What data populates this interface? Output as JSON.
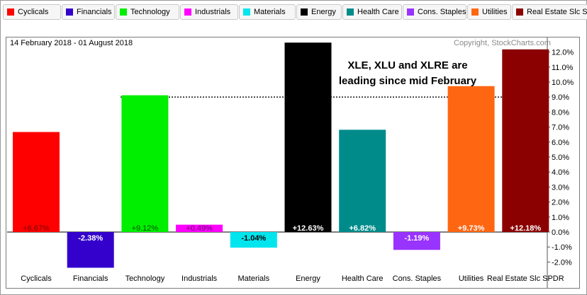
{
  "legend": [
    {
      "label": "Cyclicals",
      "color": "#ff0000"
    },
    {
      "label": "Financials",
      "color": "#3300cc"
    },
    {
      "label": "Technology",
      "color": "#00ee00"
    },
    {
      "label": "Industrials",
      "color": "#ff00ff"
    },
    {
      "label": "Materials",
      "color": "#00e5ee"
    },
    {
      "label": "Energy",
      "color": "#000000"
    },
    {
      "label": "Health Care",
      "color": "#008b8b"
    },
    {
      "label": "Cons. Staples",
      "color": "#9933ff"
    },
    {
      "label": "Utilities",
      "color": "#ff6611"
    },
    {
      "label": "Real Estate Slc SPDR",
      "color": "#8b0000"
    }
  ],
  "header": {
    "date_range": "14 February 2018 - 01 August 2018",
    "copyright": "Copyright, StockCharts.com"
  },
  "annotation": {
    "line1": "XLE, XLU and XLRE are",
    "line2": "leading since mid February"
  },
  "chart_data": {
    "type": "bar",
    "title": "",
    "xlabel": "",
    "ylabel": "",
    "categories": [
      "Cyclicals",
      "Financials",
      "Technology",
      "Industrials",
      "Materials",
      "Energy",
      "Health Care",
      "Cons. Staples",
      "Utilities",
      "Real Estate Slc SPDR"
    ],
    "values": [
      6.67,
      -2.38,
      9.12,
      0.49,
      -1.04,
      12.63,
      6.82,
      -1.19,
      9.73,
      12.18
    ],
    "value_labels": [
      "+6.67%",
      "-2.38%",
      "+9.12%",
      "+0.49%",
      "-1.04%",
      "+12.63%",
      "+6.82%",
      "-1.19%",
      "+9.73%",
      "+12.18%"
    ],
    "colors": [
      "#ff0000",
      "#3300cc",
      "#00ee00",
      "#ff00ff",
      "#00e5ee",
      "#000000",
      "#008b8b",
      "#9933ff",
      "#ff6611",
      "#8b0000"
    ],
    "label_colors": [
      "#7a0000",
      "#ffffff",
      "#005500",
      "#660066",
      "#000000",
      "#ffffff",
      "#ffffff",
      "#ffffff",
      "#ffffff",
      "#ffffff"
    ],
    "ylim": [
      -2.5,
      12.5
    ],
    "yticks": [
      -2.0,
      -1.0,
      0.0,
      1.0,
      2.0,
      3.0,
      4.0,
      5.0,
      6.0,
      7.0,
      8.0,
      9.0,
      10.0,
      11.0,
      12.0
    ],
    "ytick_labels": [
      "-2.0%",
      "-1.0%",
      "0.0%",
      "1.0%",
      "2.0%",
      "3.0%",
      "4.0%",
      "5.0%",
      "6.0%",
      "7.0%",
      "8.0%",
      "9.0%",
      "10.0%",
      "11.0%",
      "12.0%"
    ],
    "reference_line": 9.0,
    "y_axis_position": "right",
    "grid": false
  }
}
